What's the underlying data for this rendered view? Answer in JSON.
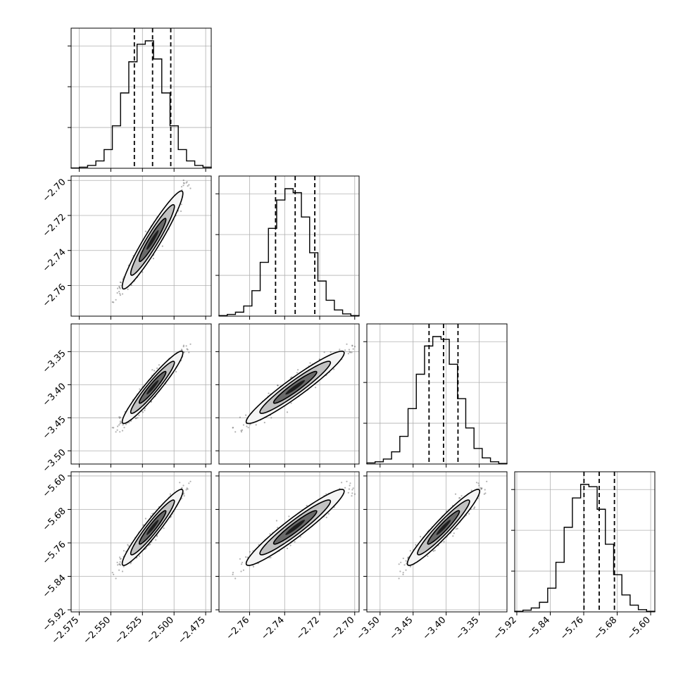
{
  "chart_data": {
    "type": "corner",
    "parameters": [
      {
        "range": [
          -2.5814,
          -2.4706
        ],
        "ticks": [
          -2.575,
          -2.55,
          -2.525,
          -2.5,
          -2.475
        ],
        "tick_labels": [
          "−2.575",
          "−2.550",
          "−2.525",
          "−2.500",
          "−2.475"
        ],
        "quantiles": [
          -2.5314,
          -2.517,
          -2.5026
        ],
        "mean": -2.517,
        "sd": 0.0096,
        "hist_counts": [
          0.5,
          2,
          5,
          13,
          33,
          75,
          133,
          188,
          219,
          225,
          193,
          133,
          75,
          33,
          13,
          5,
          2
        ]
      },
      {
        "range": [
          -2.7775,
          -2.6975
        ],
        "ticks": [
          -2.76,
          -2.74,
          -2.72,
          -2.7
        ],
        "tick_labels": [
          "−2.76",
          "−2.74",
          "−2.72",
          "−2.70"
        ],
        "quantiles": [
          -2.7452,
          -2.734,
          -2.7228
        ],
        "mean": -2.734,
        "sd": 0.0112,
        "hist_counts": [
          1,
          3,
          7,
          18,
          45,
          95,
          155,
          205,
          225,
          218,
          175,
          112,
          62,
          28,
          11,
          4,
          1
        ]
      },
      {
        "range": [
          -3.52,
          -3.308
        ],
        "ticks": [
          -3.5,
          -3.45,
          -3.4,
          -3.35
        ],
        "tick_labels": [
          "−3.50",
          "−3.45",
          "−3.40",
          "−3.35"
        ],
        "quantiles": [
          -3.4259,
          -3.404,
          -3.3821
        ],
        "mean": -3.404,
        "sd": 0.0219,
        "hist_counts": [
          2,
          4,
          9,
          22,
          50,
          100,
          162,
          213,
          230,
          225,
          180,
          118,
          65,
          28,
          11,
          4,
          1
        ]
      },
      {
        "range": [
          -5.925,
          -5.59
        ],
        "ticks": [
          -5.92,
          -5.84,
          -5.76,
          -5.68,
          -5.6
        ],
        "tick_labels": [
          "−5.92",
          "−5.84",
          "−5.76",
          "−5.68",
          "−5.60"
        ],
        "quantiles": [
          -5.7594,
          -5.723,
          -5.6866
        ],
        "mean": -5.723,
        "sd": 0.0364,
        "hist_counts": [
          1,
          3,
          7,
          17,
          42,
          88,
          150,
          202,
          226,
          222,
          182,
          120,
          66,
          30,
          12,
          4,
          1
        ]
      }
    ],
    "correlation": 0.95,
    "grid": true,
    "colors": {
      "points": "#555555",
      "contour": "#000000",
      "axes": "#000000",
      "grid": "#b0b0b0"
    }
  }
}
